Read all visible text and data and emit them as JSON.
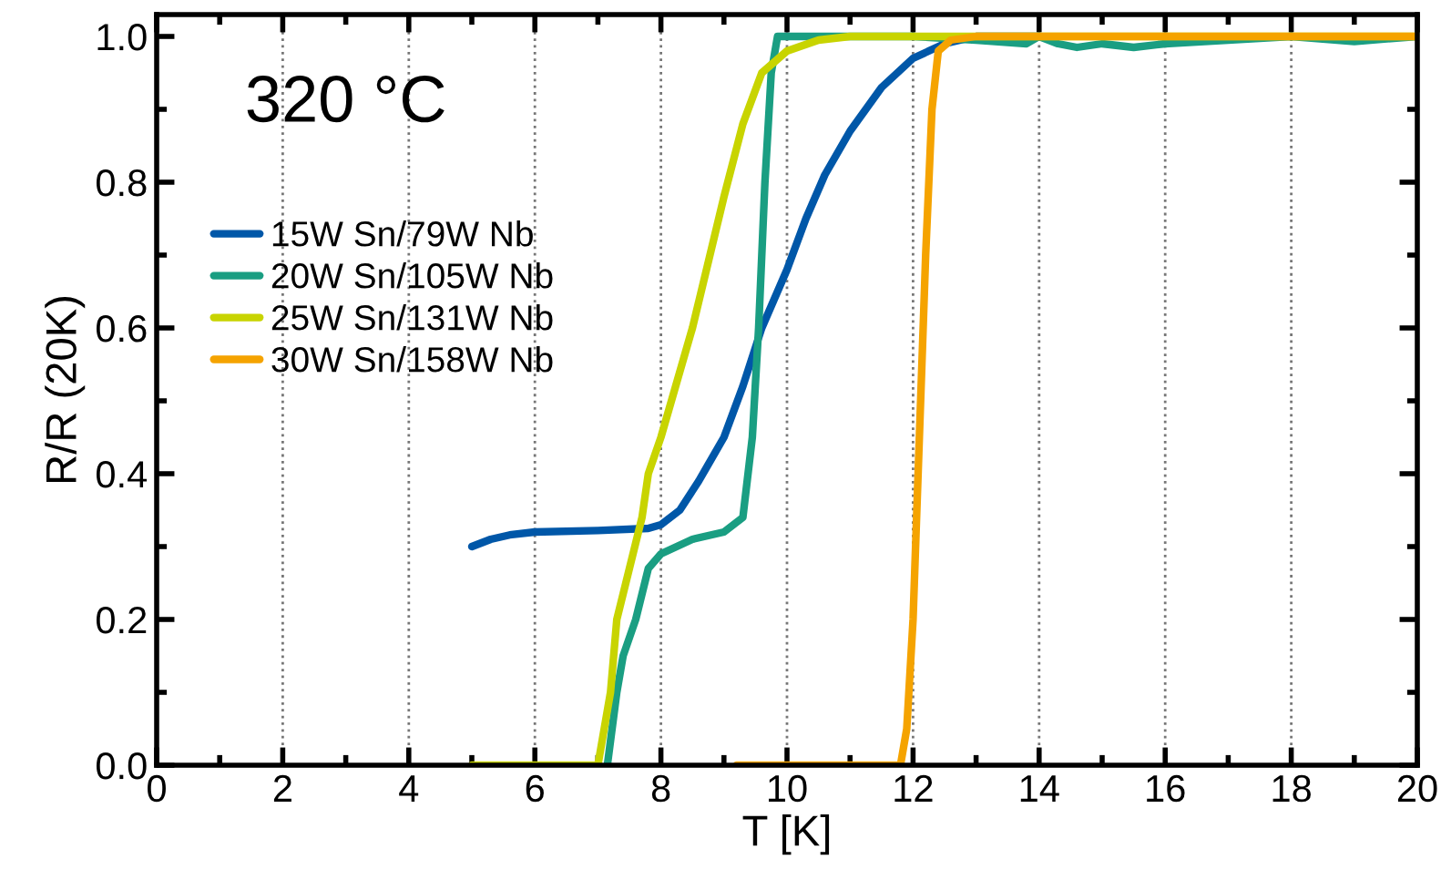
{
  "chart_data": {
    "type": "line",
    "xlabel": "T [K]",
    "ylabel": "R/R (20K)",
    "annotations": [
      "320 °C"
    ],
    "xlim": [
      0,
      20
    ],
    "xticks": [
      0,
      2,
      4,
      6,
      8,
      10,
      12,
      14,
      16,
      18,
      20
    ],
    "ylim": [
      0,
      1.03
    ],
    "yticks": [
      {
        "value": 0,
        "label": "0.0"
      },
      0.2,
      0.4,
      0.6,
      0.8,
      {
        "value": 1,
        "label": "1.0"
      }
    ],
    "grid": "x",
    "legend": "left",
    "line_style": "solid",
    "series": [
      {
        "name": "15W Sn/79W Nb",
        "color": "#0057a8",
        "x": [
          5,
          5.3,
          5.6,
          6,
          7,
          7.8,
          8,
          8.3,
          8.6,
          9,
          9.3,
          9.6,
          10,
          10.3,
          10.6,
          11,
          11.5,
          12,
          12.5,
          13,
          14
        ],
        "values": [
          0.3,
          0.31,
          0.316,
          0.32,
          0.322,
          0.325,
          0.33,
          0.35,
          0.39,
          0.45,
          0.52,
          0.6,
          0.68,
          0.75,
          0.81,
          0.87,
          0.93,
          0.97,
          0.99,
          1.0,
          1.0
        ]
      },
      {
        "name": "20W Sn/105W Nb",
        "color": "#1a9e82",
        "x": [
          7.15,
          7.3,
          7.4,
          7.6,
          7.8,
          8,
          8.5,
          9,
          9.3,
          9.45,
          9.55,
          9.65,
          9.75,
          9.85,
          10,
          11,
          12,
          13,
          13.8,
          14,
          14.3,
          14.6,
          15,
          15.5,
          16,
          17,
          18,
          19,
          20
        ],
        "values": [
          0,
          0.1,
          0.15,
          0.2,
          0.27,
          0.29,
          0.31,
          0.32,
          0.34,
          0.45,
          0.6,
          0.8,
          0.95,
          1.0,
          1.0,
          1.0,
          1.0,
          0.995,
          0.99,
          1.0,
          0.99,
          0.985,
          0.99,
          0.985,
          0.99,
          0.995,
          1.0,
          0.993,
          1.0
        ]
      },
      {
        "name": "25W Sn/131W Nb",
        "color": "#c8d400",
        "x": [
          5,
          7.0,
          7.2,
          7.3,
          7.5,
          7.7,
          7.8,
          8,
          8.5,
          9,
          9.3,
          9.6,
          10,
          10.5,
          11,
          14,
          17,
          20
        ],
        "values": [
          0,
          0,
          0.1,
          0.2,
          0.27,
          0.34,
          0.4,
          0.45,
          0.6,
          0.78,
          0.88,
          0.95,
          0.98,
          0.995,
          1.0,
          1.0,
          1.0,
          1.0
        ]
      },
      {
        "name": "30W Sn/158W Nb",
        "color": "#f5a300",
        "x": [
          9.2,
          11.8,
          11.9,
          12,
          12.1,
          12.2,
          12.3,
          12.4,
          12.6,
          13,
          16,
          20
        ],
        "values": [
          0,
          0,
          0.05,
          0.2,
          0.45,
          0.7,
          0.9,
          0.98,
          0.995,
          1.0,
          1.0,
          1.0
        ]
      }
    ]
  }
}
